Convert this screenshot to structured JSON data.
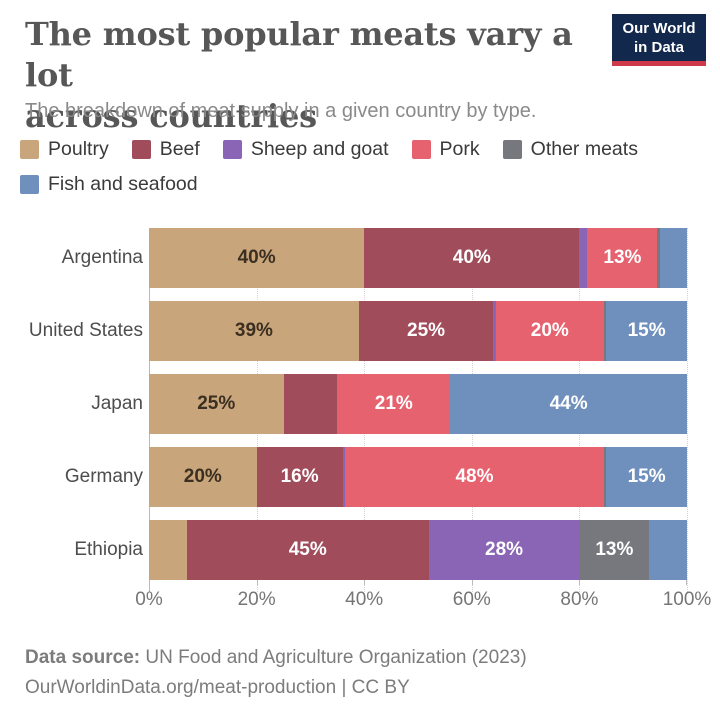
{
  "header": {
    "title_line1": "The most popular meats vary a lot",
    "title_line2": "across countries",
    "subtitle": "The breakdown of meat supply in a given country by type.",
    "logo": {
      "line1": "Our World",
      "line2": "in Data",
      "bg_color": "#12294D",
      "accent_color": "#CF3A4A"
    }
  },
  "legend": {
    "rows": [
      [
        0,
        1,
        2,
        3,
        4
      ],
      [
        5
      ]
    ]
  },
  "chart_data": {
    "type": "bar",
    "orientation": "horizontal-stacked",
    "unit": "%",
    "xlim": [
      0,
      100
    ],
    "grid": "dotted-vertical",
    "x_ticks": [
      "0%",
      "20%",
      "40%",
      "60%",
      "80%",
      "100%"
    ],
    "x_tick_values": [
      0,
      20,
      40,
      60,
      80,
      100
    ],
    "categories": [
      "Argentina",
      "United States",
      "Japan",
      "Germany",
      "Ethiopia"
    ],
    "series": [
      {
        "name": "Poultry",
        "color": "#C9A57B",
        "text": "dark",
        "values": [
          40,
          39,
          25,
          20,
          7
        ],
        "labels": [
          "40%",
          "39%",
          "25%",
          "20%",
          ""
        ]
      },
      {
        "name": "Beef",
        "color": "#A04C5A",
        "text": "light",
        "values": [
          40,
          25,
          10,
          16,
          45
        ],
        "labels": [
          "40%",
          "25%",
          "",
          "16%",
          "45%"
        ]
      },
      {
        "name": "Sheep and goat",
        "color": "#8A65B5",
        "text": "light",
        "values": [
          1.5,
          0.5,
          0,
          0.5,
          28
        ],
        "labels": [
          "",
          "",
          "",
          "",
          "28%"
        ]
      },
      {
        "name": "Pork",
        "color": "#E7626F",
        "text": "light",
        "values": [
          13,
          20,
          21,
          48,
          0
        ],
        "labels": [
          "13%",
          "20%",
          "21%",
          "48%",
          ""
        ]
      },
      {
        "name": "Other meats",
        "color": "#77777E",
        "text": "light",
        "values": [
          0.5,
          0.5,
          0,
          0.5,
          13
        ],
        "labels": [
          "",
          "",
          "",
          "",
          "13%"
        ]
      },
      {
        "name": "Fish and seafood",
        "color": "#6F90BD",
        "text": "light",
        "values": [
          5,
          15,
          44,
          15,
          7
        ],
        "labels": [
          "",
          "15%",
          "44%",
          "15%",
          ""
        ]
      }
    ]
  },
  "footer": {
    "source_label": "Data source:",
    "source_text": " UN Food and Agriculture Organization (2023)",
    "link": "OurWorldinData.org/meat-production",
    "license": " | CC BY"
  }
}
